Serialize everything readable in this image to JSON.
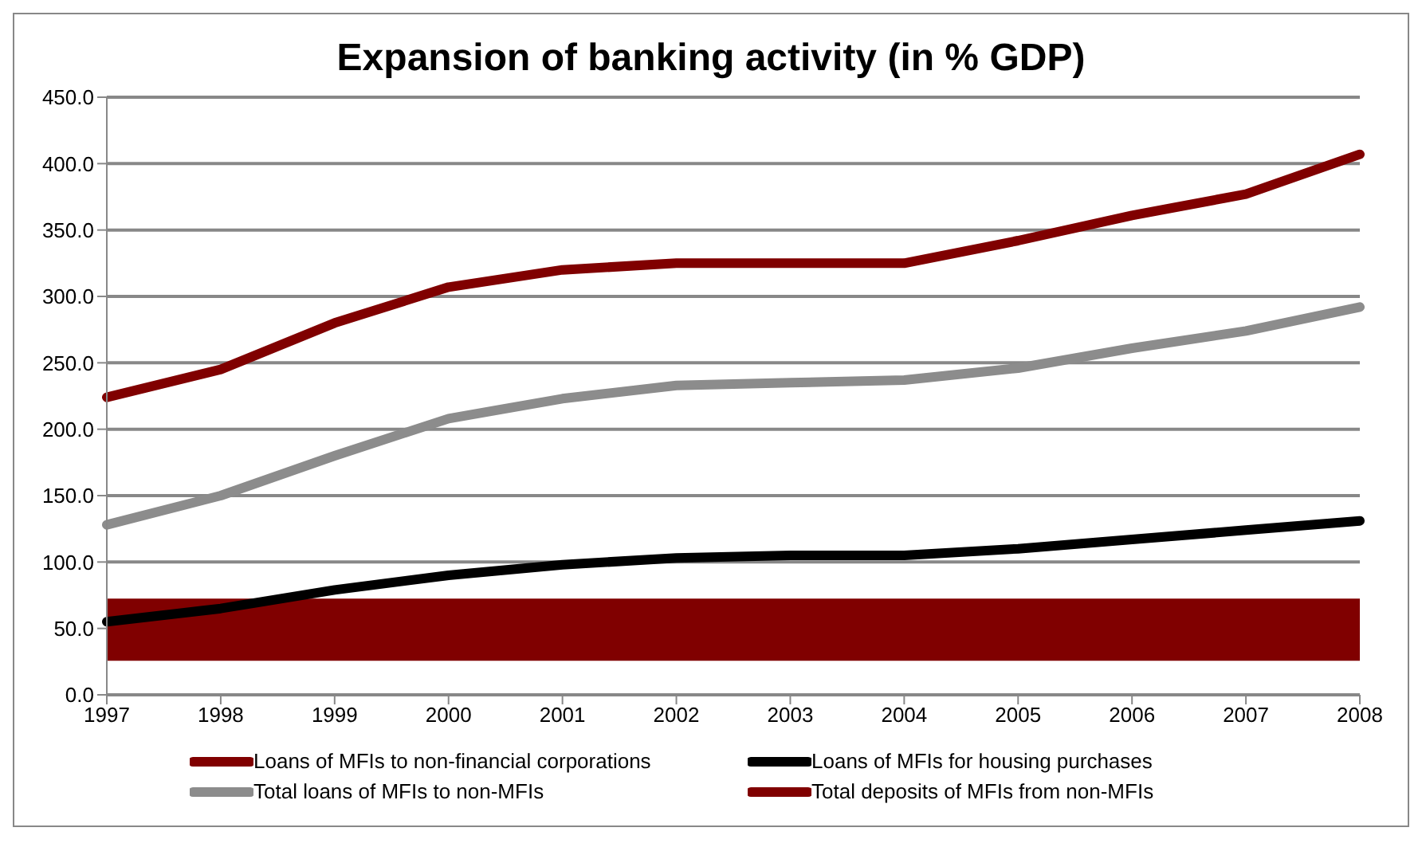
{
  "chart_data": {
    "type": "line",
    "title": "Expansion of banking activity (in % GDP)",
    "categories": [
      "1997",
      "1998",
      "1999",
      "2000",
      "2001",
      "2002",
      "2003",
      "2004",
      "2005",
      "2006",
      "2007",
      "2008"
    ],
    "series": [
      {
        "name": "Loans of MFIs to non-financial corporations",
        "color": "#800000",
        "values": [
          49,
          49,
          49,
          49,
          49,
          49,
          49,
          49,
          49,
          49,
          49,
          49
        ]
      },
      {
        "name": "Loans of MFIs for housing purchases",
        "color": "#000000",
        "values": [
          55,
          65,
          79,
          90,
          98,
          103,
          105,
          105,
          110,
          117,
          124,
          131
        ]
      },
      {
        "name": "Total loans of MFIs to non-MFIs",
        "color": "#8c8c8c",
        "values": [
          128,
          150,
          180,
          208,
          223,
          233,
          235,
          237,
          246,
          261,
          274,
          292
        ]
      },
      {
        "name": "Total deposits of MFIs from non-MFIs",
        "color": "#800000",
        "values": [
          224,
          245,
          280,
          307,
          320,
          325,
          325,
          325,
          342,
          361,
          377,
          407
        ]
      }
    ],
    "ylim": [
      0,
      450
    ],
    "yticks": [
      {
        "value": 0,
        "label": "0.0"
      },
      {
        "value": 50,
        "label": "50.0"
      },
      {
        "value": 100,
        "label": "100.0"
      },
      {
        "value": 150,
        "label": "150.0"
      },
      {
        "value": 200,
        "label": "200.0"
      },
      {
        "value": 250,
        "label": "250.0"
      },
      {
        "value": 300,
        "label": "300.0"
      },
      {
        "value": 350,
        "label": "350.0"
      },
      {
        "value": 400,
        "label": "400.0"
      },
      {
        "value": 450,
        "label": "450.0"
      }
    ],
    "grid": "y",
    "legend": "bottom",
    "marker": "none",
    "line_style": "solid"
  }
}
